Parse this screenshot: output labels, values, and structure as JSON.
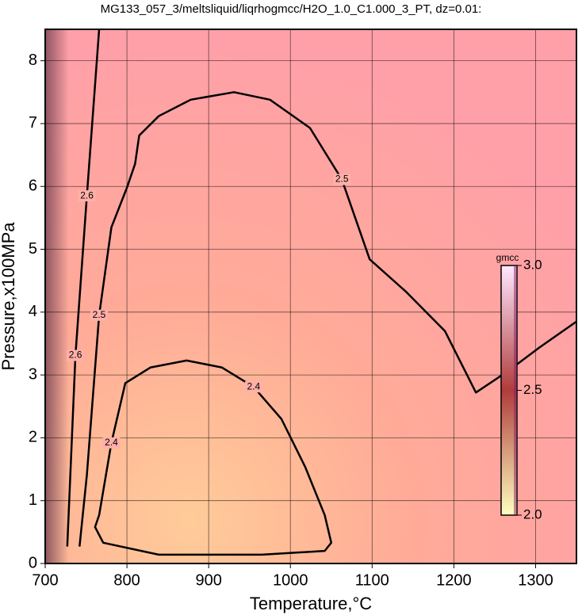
{
  "chart_data": {
    "type": "contour",
    "title": "MG133_057_3/meltsliquid/liqrhogmcc/H2O_1.0_C1.000_3_PT, dz=0.01:",
    "xlabel": "Temperature,°C",
    "ylabel": "Pressure,x100MPa",
    "xlim": [
      700,
      1350
    ],
    "ylim": [
      0,
      8.5
    ],
    "xticks": [
      700,
      800,
      900,
      1000,
      1100,
      1200,
      1300
    ],
    "yticks": [
      0,
      1,
      2,
      3,
      4,
      5,
      6,
      7,
      8
    ],
    "grid": true,
    "series": [
      {
        "name": "2.4",
        "color": "#000000",
        "x": [
          766,
          781,
          798,
          829,
          873,
          916,
          955,
          989,
          1018,
          1042,
          1050,
          1042,
          965,
          839,
          771,
          761,
          766
        ],
        "y": [
          0.77,
          1.92,
          2.87,
          3.12,
          3.23,
          3.12,
          2.81,
          2.3,
          1.54,
          0.77,
          0.33,
          0.2,
          0.14,
          0.14,
          0.33,
          0.58,
          0.77
        ]
      },
      {
        "name": "2.5",
        "color": "#000000",
        "x": [
          742,
          751,
          766,
          781,
          800,
          810,
          815,
          839,
          878,
          931,
          975,
          1024,
          1063,
          1097,
          1141,
          1189,
          1227,
          1266,
          1305,
          1350
        ],
        "y": [
          0.27,
          1.41,
          3.95,
          5.35,
          5.98,
          6.36,
          6.81,
          7.12,
          7.38,
          7.5,
          7.38,
          6.93,
          6.11,
          4.84,
          4.33,
          3.7,
          2.72,
          3.06,
          3.44,
          3.85
        ]
      },
      {
        "name": "2.6",
        "color": "#000000",
        "x": [
          727,
          737,
          751,
          766
        ],
        "y": [
          0.27,
          3.31,
          5.85,
          8.5
        ]
      }
    ],
    "colorbar": {
      "label": "gmcc",
      "ticks": [
        {
          "value": 2,
          "label": "2.0"
        },
        2.5,
        {
          "value": 3,
          "label": "3.0"
        }
      ],
      "colors": [
        "#ffffc0",
        "#b03c3c",
        "#ffe8ff"
      ]
    }
  }
}
